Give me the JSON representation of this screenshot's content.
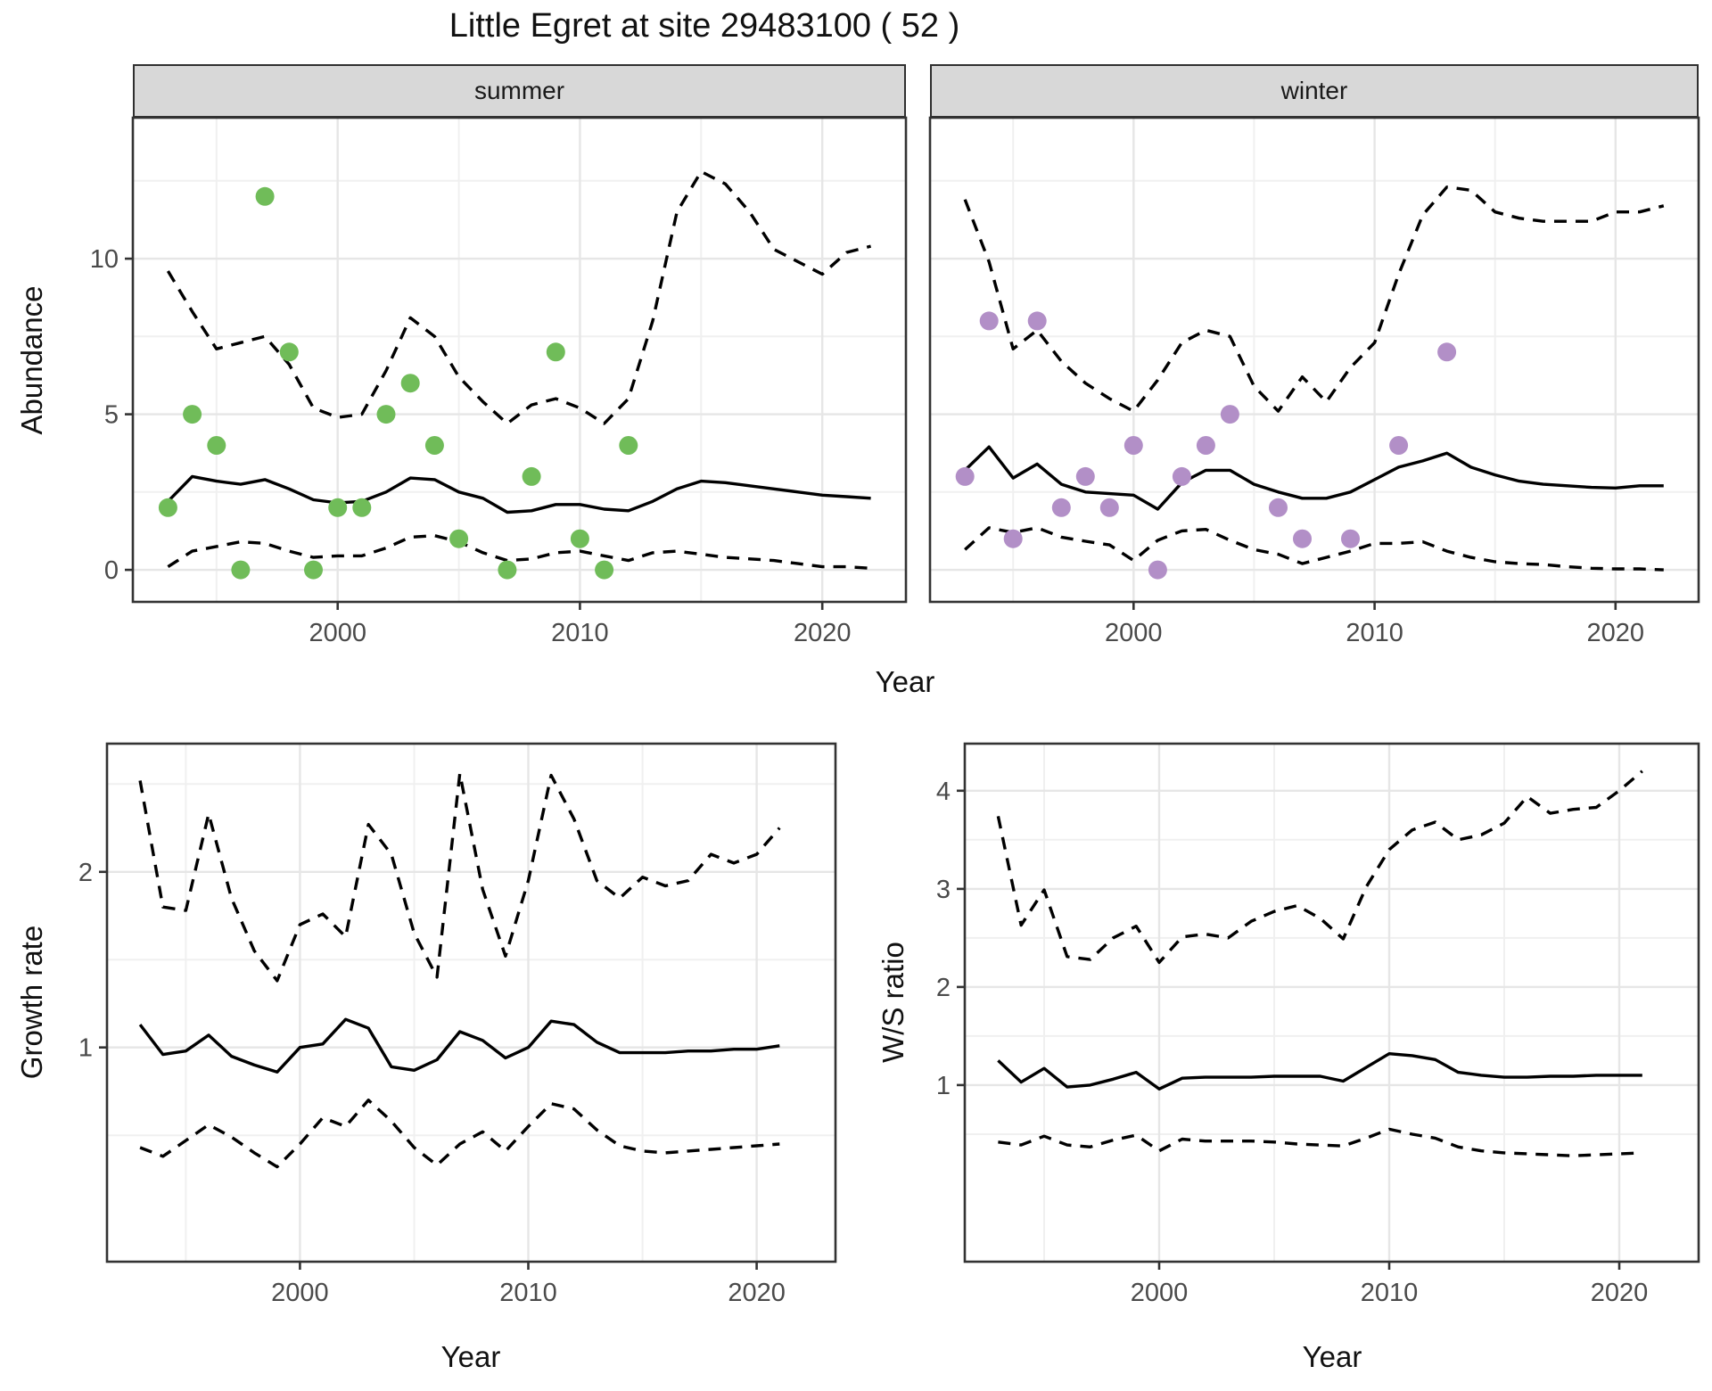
{
  "title": "Little Egret at site 29483100 ( 52 )",
  "labels": {
    "abundance": "Abundance",
    "growth": "Growth rate",
    "ws": "W/S ratio",
    "year": "Year"
  },
  "colors": {
    "summer_point": "#70bc59",
    "winter_point": "#b28fc7",
    "line": "#000000",
    "strip_bg": "#d8d8d8",
    "panel_border": "#333333",
    "grid_major": "#e6e6e6",
    "grid_minor": "#f0f0f0",
    "tick_label": "#4a4a4a",
    "tick_mark": "#333333"
  },
  "chart_data": [
    {
      "id": "summer",
      "type": "line+scatter",
      "facet_label": "summer",
      "ylabel": "Abundance",
      "xlabel": "Year",
      "xlim": [
        1991.55,
        2023.45
      ],
      "ylim": [
        -1.03,
        14.53
      ],
      "x_major": [
        2000,
        2010,
        2020
      ],
      "x_minor": [
        1995,
        2005,
        2015
      ],
      "y_major": [
        0,
        5,
        10
      ],
      "y_minor": [
        2.5,
        7.5,
        12.5
      ],
      "show_y_labels": true,
      "point_color_key": "summer_point",
      "x": [
        1993,
        1994,
        1995,
        1996,
        1997,
        1998,
        1999,
        2000,
        2001,
        2002,
        2003,
        2004,
        2005,
        2006,
        2007,
        2008,
        2009,
        2010,
        2011,
        2012,
        2013,
        2014,
        2015,
        2016,
        2017,
        2018,
        2019,
        2020,
        2021,
        2022
      ],
      "series": [
        {
          "name": "mean",
          "style": "solid",
          "values": [
            2.2,
            3.0,
            2.85,
            2.75,
            2.9,
            2.6,
            2.25,
            2.15,
            2.2,
            2.5,
            2.95,
            2.9,
            2.5,
            2.3,
            1.85,
            1.9,
            2.1,
            2.1,
            1.95,
            1.9,
            2.2,
            2.6,
            2.85,
            2.8,
            2.7,
            2.6,
            2.5,
            2.4,
            2.35,
            2.3
          ]
        },
        {
          "name": "upper_ci",
          "style": "dashed",
          "values": [
            9.6,
            8.3,
            7.1,
            7.3,
            7.5,
            6.6,
            5.2,
            4.9,
            5.0,
            6.4,
            8.1,
            7.5,
            6.2,
            5.4,
            4.7,
            5.3,
            5.5,
            5.2,
            4.7,
            5.5,
            8.0,
            11.5,
            12.8,
            12.4,
            11.5,
            10.3,
            9.9,
            9.5,
            10.2,
            10.4
          ]
        },
        {
          "name": "lower_ci",
          "style": "dashed",
          "values": [
            0.1,
            0.6,
            0.75,
            0.9,
            0.85,
            0.6,
            0.4,
            0.45,
            0.45,
            0.7,
            1.05,
            1.1,
            0.9,
            0.55,
            0.3,
            0.35,
            0.55,
            0.6,
            0.45,
            0.3,
            0.55,
            0.6,
            0.5,
            0.4,
            0.35,
            0.3,
            0.2,
            0.1,
            0.1,
            0.05
          ]
        }
      ],
      "points": {
        "x": [
          1993,
          1994,
          1995,
          1996,
          1997,
          1998,
          1999,
          2000,
          2001,
          2002,
          2003,
          2004,
          2005,
          2007,
          2008,
          2009,
          2010,
          2011,
          2012
        ],
        "y": [
          2,
          5,
          4,
          0,
          12,
          7,
          0,
          2,
          2,
          5,
          6,
          4,
          1,
          0,
          3,
          7,
          1,
          0,
          4
        ]
      }
    },
    {
      "id": "winter",
      "type": "line+scatter",
      "facet_label": "winter",
      "ylabel": "Abundance",
      "xlabel": "Year",
      "xlim": [
        1991.55,
        2023.45
      ],
      "ylim": [
        -1.03,
        14.53
      ],
      "x_major": [
        2000,
        2010,
        2020
      ],
      "x_minor": [
        1995,
        2005,
        2015
      ],
      "y_major": [
        0,
        5,
        10
      ],
      "y_minor": [
        2.5,
        7.5,
        12.5
      ],
      "show_y_labels": false,
      "point_color_key": "winter_point",
      "x": [
        1993,
        1994,
        1995,
        1996,
        1997,
        1998,
        1999,
        2000,
        2001,
        2002,
        2003,
        2004,
        2005,
        2006,
        2007,
        2008,
        2009,
        2010,
        2011,
        2012,
        2013,
        2014,
        2015,
        2016,
        2017,
        2018,
        2019,
        2020,
        2021,
        2022
      ],
      "series": [
        {
          "name": "mean",
          "style": "solid",
          "values": [
            3.2,
            3.95,
            2.95,
            3.4,
            2.75,
            2.5,
            2.45,
            2.4,
            1.95,
            2.8,
            3.2,
            3.2,
            2.75,
            2.5,
            2.3,
            2.3,
            2.5,
            2.9,
            3.3,
            3.5,
            3.75,
            3.3,
            3.05,
            2.85,
            2.75,
            2.7,
            2.65,
            2.63,
            2.7,
            2.7
          ]
        },
        {
          "name": "upper_ci",
          "style": "dashed",
          "values": [
            11.9,
            9.9,
            7.1,
            7.7,
            6.7,
            6.0,
            5.5,
            5.1,
            6.1,
            7.3,
            7.7,
            7.5,
            5.9,
            5.1,
            6.2,
            5.4,
            6.5,
            7.3,
            9.5,
            11.4,
            12.3,
            12.2,
            11.5,
            11.3,
            11.2,
            11.2,
            11.2,
            11.5,
            11.5,
            11.7
          ]
        },
        {
          "name": "lower_ci",
          "style": "dashed",
          "values": [
            0.65,
            1.35,
            1.2,
            1.35,
            1.05,
            0.92,
            0.8,
            0.3,
            0.95,
            1.25,
            1.3,
            0.95,
            0.65,
            0.5,
            0.2,
            0.4,
            0.6,
            0.85,
            0.85,
            0.9,
            0.6,
            0.4,
            0.26,
            0.2,
            0.17,
            0.1,
            0.05,
            0.03,
            0.03,
            0.0
          ]
        }
      ],
      "points": {
        "x": [
          1993,
          1994,
          1995,
          1996,
          1997,
          1998,
          1999,
          2000,
          2001,
          2002,
          2003,
          2004,
          2006,
          2007,
          2009,
          2011,
          2013
        ],
        "y": [
          3,
          8,
          1,
          8,
          2,
          3,
          2,
          4,
          0,
          3,
          4,
          5,
          2,
          1,
          1,
          4,
          7
        ]
      }
    },
    {
      "id": "growth",
      "type": "line",
      "facet_label": "",
      "ylabel": "Growth rate",
      "xlabel": "Year",
      "xlim": [
        1991.55,
        2023.45
      ],
      "ylim": [
        -0.22,
        2.73
      ],
      "x_major": [
        2000,
        2010,
        2020
      ],
      "x_minor": [
        1995,
        2005,
        2015
      ],
      "y_major": [
        1,
        2
      ],
      "y_minor": [
        0.5,
        1.5,
        2.5
      ],
      "show_y_labels": true,
      "point_color_key": null,
      "x": [
        1993,
        1994,
        1995,
        1996,
        1997,
        1998,
        1999,
        2000,
        2001,
        2002,
        2003,
        2004,
        2005,
        2006,
        2007,
        2008,
        2009,
        2010,
        2011,
        2012,
        2013,
        2014,
        2015,
        2016,
        2017,
        2018,
        2019,
        2020,
        2021
      ],
      "series": [
        {
          "name": "mean",
          "style": "solid",
          "values": [
            1.13,
            0.96,
            0.98,
            1.07,
            0.95,
            0.9,
            0.86,
            1.0,
            1.02,
            1.16,
            1.11,
            0.89,
            0.87,
            0.93,
            1.09,
            1.04,
            0.94,
            1.0,
            1.15,
            1.13,
            1.03,
            0.97,
            0.97,
            0.97,
            0.98,
            0.98,
            0.99,
            0.99,
            1.01
          ]
        },
        {
          "name": "upper_ci",
          "style": "dashed",
          "values": [
            2.52,
            1.8,
            1.78,
            2.33,
            1.85,
            1.55,
            1.38,
            1.7,
            1.76,
            1.63,
            2.27,
            2.1,
            1.65,
            1.4,
            2.56,
            1.9,
            1.52,
            1.95,
            2.55,
            2.3,
            1.95,
            1.85,
            1.97,
            1.92,
            1.95,
            2.1,
            2.05,
            2.1,
            2.25
          ]
        },
        {
          "name": "lower_ci",
          "style": "dashed",
          "values": [
            0.43,
            0.38,
            0.47,
            0.56,
            0.49,
            0.4,
            0.32,
            0.45,
            0.6,
            0.55,
            0.7,
            0.58,
            0.43,
            0.33,
            0.45,
            0.52,
            0.41,
            0.55,
            0.68,
            0.65,
            0.53,
            0.44,
            0.41,
            0.4,
            0.41,
            0.42,
            0.43,
            0.44,
            0.45
          ]
        }
      ],
      "points": {
        "x": [],
        "y": []
      }
    },
    {
      "id": "ws",
      "type": "line",
      "facet_label": "",
      "ylabel": "W/S ratio",
      "xlabel": "Year",
      "xlim": [
        1991.55,
        2023.45
      ],
      "ylim": [
        -0.8,
        4.48
      ],
      "x_major": [
        2000,
        2010,
        2020
      ],
      "x_minor": [
        1995,
        2005,
        2015
      ],
      "y_major": [
        1,
        2,
        3,
        4
      ],
      "y_minor": [
        0.5,
        1.5,
        2.5,
        3.5
      ],
      "show_y_labels": true,
      "point_color_key": null,
      "x": [
        1993,
        1994,
        1995,
        1996,
        1997,
        1998,
        1999,
        2000,
        2001,
        2002,
        2003,
        2004,
        2005,
        2006,
        2007,
        2008,
        2009,
        2010,
        2011,
        2012,
        2013,
        2014,
        2015,
        2016,
        2017,
        2018,
        2019,
        2020,
        2021
      ],
      "series": [
        {
          "name": "mean",
          "style": "solid",
          "values": [
            1.25,
            1.03,
            1.17,
            0.98,
            1.0,
            1.06,
            1.13,
            0.96,
            1.07,
            1.08,
            1.08,
            1.08,
            1.09,
            1.09,
            1.09,
            1.04,
            1.18,
            1.32,
            1.3,
            1.26,
            1.13,
            1.1,
            1.08,
            1.08,
            1.09,
            1.09,
            1.1,
            1.1,
            1.1
          ]
        },
        {
          "name": "upper_ci",
          "style": "dashed",
          "values": [
            3.74,
            2.63,
            2.99,
            2.31,
            2.28,
            2.5,
            2.62,
            2.25,
            2.51,
            2.54,
            2.5,
            2.67,
            2.77,
            2.83,
            2.7,
            2.49,
            3.02,
            3.4,
            3.6,
            3.68,
            3.5,
            3.55,
            3.67,
            3.94,
            3.77,
            3.81,
            3.83,
            4.0,
            4.2
          ]
        },
        {
          "name": "lower_ci",
          "style": "dashed",
          "values": [
            0.42,
            0.39,
            0.48,
            0.39,
            0.37,
            0.44,
            0.49,
            0.33,
            0.45,
            0.43,
            0.43,
            0.43,
            0.42,
            0.4,
            0.39,
            0.38,
            0.46,
            0.55,
            0.5,
            0.46,
            0.37,
            0.33,
            0.31,
            0.3,
            0.29,
            0.28,
            0.29,
            0.3,
            0.31
          ]
        }
      ],
      "points": {
        "x": [],
        "y": []
      }
    }
  ]
}
